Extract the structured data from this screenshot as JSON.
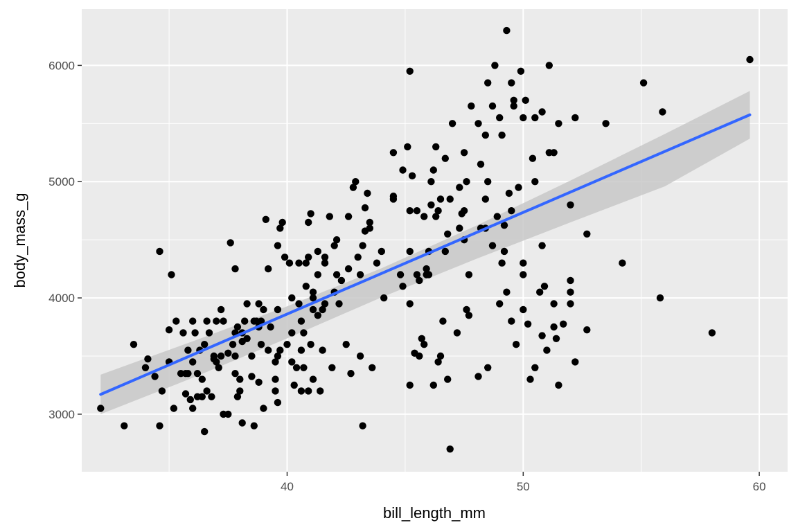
{
  "chart_data": {
    "type": "scatter",
    "xlabel": "bill_length_mm",
    "ylabel": "body_mass_g",
    "xlim": [
      31.3,
      61.2
    ],
    "ylim": [
      2505,
      6485
    ],
    "x_ticks": [
      40,
      50,
      60
    ],
    "x_minor_ticks": [
      35,
      45,
      55
    ],
    "y_ticks": [
      3000,
      4000,
      5000,
      6000
    ],
    "y_minor_ticks": [
      2500,
      3500,
      4500,
      5500
    ],
    "grid": true,
    "legend": "none",
    "colors": {
      "panel": "#ebebeb",
      "grid": "#ffffff",
      "points": "#000000",
      "smooth_line": "#3366ff",
      "ribbon": "#c8c8c8"
    },
    "smooth": {
      "method": "lm",
      "se": true,
      "line": [
        [
          32.1,
          3170
        ],
        [
          59.6,
          5575
        ]
      ],
      "ribbon_upper": [
        [
          32.1,
          3340
        ],
        [
          36,
          3627
        ],
        [
          40,
          3928
        ],
        [
          44,
          4255
        ],
        [
          48,
          4620
        ],
        [
          52,
          5010
        ],
        [
          56,
          5410
        ],
        [
          59.6,
          5780
        ]
      ],
      "ribbon_lower": [
        [
          32.1,
          3000
        ],
        [
          36,
          3313
        ],
        [
          40,
          3652
        ],
        [
          44,
          4005
        ],
        [
          48,
          4335
        ],
        [
          52,
          4650
        ],
        [
          56,
          4960
        ],
        [
          59.6,
          5370
        ]
      ]
    },
    "points": [
      [
        32.1,
        3050
      ],
      [
        33.1,
        2900
      ],
      [
        33.5,
        3600
      ],
      [
        34.0,
        3400
      ],
      [
        34.1,
        3475
      ],
      [
        34.4,
        3325
      ],
      [
        34.6,
        2900
      ],
      [
        34.6,
        4400
      ],
      [
        34.7,
        3200
      ],
      [
        35.0,
        3725
      ],
      [
        35.0,
        3450
      ],
      [
        35.1,
        4200
      ],
      [
        35.2,
        3050
      ],
      [
        35.3,
        3800
      ],
      [
        35.5,
        3350
      ],
      [
        35.6,
        3700
      ],
      [
        35.7,
        3175
      ],
      [
        35.7,
        3350
      ],
      [
        35.8,
        3550
      ],
      [
        35.9,
        3125
      ],
      [
        36.0,
        3800
      ],
      [
        36.0,
        3050
      ],
      [
        36.0,
        3450
      ],
      [
        36.1,
        3700
      ],
      [
        36.2,
        3150
      ],
      [
        36.3,
        3550
      ],
      [
        36.4,
        3300
      ],
      [
        36.5,
        2850
      ],
      [
        36.6,
        3800
      ],
      [
        36.6,
        3200
      ],
      [
        36.7,
        3700
      ],
      [
        36.8,
        3150
      ],
      [
        36.9,
        3500
      ],
      [
        37.0,
        3450
      ],
      [
        37.0,
        3800
      ],
      [
        37.1,
        3400
      ],
      [
        37.2,
        3500
      ],
      [
        37.3,
        3000
      ],
      [
        37.5,
        3000
      ],
      [
        37.6,
        4475
      ],
      [
        37.7,
        3600
      ],
      [
        37.8,
        3350
      ],
      [
        37.8,
        3500
      ],
      [
        37.8,
        4250
      ],
      [
        37.9,
        3750
      ],
      [
        38.0,
        3300
      ],
      [
        38.1,
        3700
      ],
      [
        38.1,
        2925
      ],
      [
        38.2,
        3800
      ],
      [
        38.3,
        3950
      ],
      [
        38.5,
        3325
      ],
      [
        38.6,
        3800
      ],
      [
        38.6,
        2900
      ],
      [
        38.7,
        3800
      ],
      [
        38.8,
        3950
      ],
      [
        38.8,
        3275
      ],
      [
        38.9,
        3600
      ],
      [
        39.0,
        3050
      ],
      [
        39.1,
        4675
      ],
      [
        39.2,
        4250
      ],
      [
        39.2,
        3550
      ],
      [
        39.5,
        3200
      ],
      [
        39.5,
        3300
      ],
      [
        39.6,
        3500
      ],
      [
        39.6,
        4450
      ],
      [
        39.7,
        4600
      ],
      [
        39.7,
        3550
      ],
      [
        39.8,
        4650
      ],
      [
        40.1,
        4300
      ],
      [
        40.2,
        3450
      ],
      [
        40.3,
        3250
      ],
      [
        40.5,
        3950
      ],
      [
        40.6,
        3200
      ],
      [
        40.6,
        3550
      ],
      [
        40.7,
        3400
      ],
      [
        40.8,
        4300
      ],
      [
        40.9,
        3200
      ],
      [
        40.9,
        4650
      ],
      [
        41.0,
        4725
      ],
      [
        41.1,
        4050
      ],
      [
        41.1,
        3300
      ],
      [
        41.1,
        3900
      ],
      [
        41.3,
        4400
      ],
      [
        41.4,
        3200
      ],
      [
        41.5,
        3550
      ],
      [
        41.6,
        3950
      ],
      [
        41.8,
        4700
      ],
      [
        42.0,
        4450
      ],
      [
        42.0,
        4050
      ],
      [
        42.3,
        4150
      ],
      [
        42.5,
        3600
      ],
      [
        42.7,
        3350
      ],
      [
        42.8,
        4950
      ],
      [
        43.1,
        3500
      ],
      [
        43.2,
        2900
      ],
      [
        43.2,
        4450
      ],
      [
        43.3,
        4575
      ],
      [
        43.5,
        4600
      ],
      [
        43.6,
        3400
      ],
      [
        44.1,
        4000
      ],
      [
        44.5,
        5250
      ],
      [
        44.5,
        4850
      ],
      [
        45.2,
        5950
      ],
      [
        45.2,
        3950
      ],
      [
        45.2,
        3250
      ],
      [
        45.4,
        3525
      ],
      [
        45.5,
        4750
      ],
      [
        45.6,
        3500
      ],
      [
        45.7,
        3650
      ],
      [
        45.8,
        3600
      ],
      [
        45.9,
        4200
      ],
      [
        46.1,
        4800
      ],
      [
        46.1,
        5000
      ],
      [
        46.2,
        3250
      ],
      [
        46.4,
        3450
      ],
      [
        46.5,
        3500
      ],
      [
        46.6,
        3800
      ],
      [
        46.8,
        3300
      ],
      [
        46.9,
        2700
      ],
      [
        47.0,
        5500
      ],
      [
        47.2,
        3700
      ],
      [
        47.4,
        4725
      ],
      [
        47.5,
        5250
      ],
      [
        47.6,
        3900
      ],
      [
        47.7,
        3850
      ],
      [
        48.2,
        5150
      ],
      [
        48.4,
        4600
      ],
      [
        48.5,
        5850
      ],
      [
        48.7,
        5650
      ],
      [
        48.8,
        6000
      ],
      [
        49.0,
        5550
      ],
      [
        49.2,
        4400
      ],
      [
        49.3,
        6300
      ],
      [
        49.5,
        5850
      ],
      [
        49.6,
        5650
      ],
      [
        49.9,
        5950
      ],
      [
        50.0,
        4300
      ],
      [
        50.1,
        5700
      ],
      [
        50.5,
        5550
      ],
      [
        50.8,
        4450
      ],
      [
        51.1,
        6000
      ],
      [
        51.3,
        5250
      ],
      [
        51.5,
        5500
      ],
      [
        52.0,
        4800
      ],
      [
        52.2,
        5550
      ],
      [
        52.7,
        4550
      ],
      [
        53.5,
        5500
      ],
      [
        54.2,
        4300
      ],
      [
        55.1,
        5850
      ],
      [
        55.9,
        5600
      ],
      [
        55.8,
        4000
      ],
      [
        58.0,
        3700
      ],
      [
        59.6,
        6050
      ],
      [
        48.1,
        3325
      ],
      [
        48.5,
        3400
      ],
      [
        49.0,
        3950
      ],
      [
        49.3,
        4050
      ],
      [
        49.5,
        3800
      ],
      [
        49.7,
        3600
      ],
      [
        50.0,
        3900
      ],
      [
        50.2,
        3775
      ],
      [
        50.3,
        3300
      ],
      [
        50.5,
        3400
      ],
      [
        50.7,
        4050
      ],
      [
        50.8,
        3675
      ],
      [
        51.0,
        3550
      ],
      [
        51.3,
        3750
      ],
      [
        51.4,
        3650
      ],
      [
        51.5,
        3250
      ],
      [
        51.7,
        3775
      ],
      [
        52.0,
        3950
      ],
      [
        52.2,
        3450
      ],
      [
        52.7,
        3725
      ],
      [
        50.9,
        4100
      ],
      [
        52.0,
        4150
      ],
      [
        51.3,
        3950
      ],
      [
        52.0,
        4050
      ],
      [
        49.2,
        4625
      ],
      [
        49.5,
        4750
      ],
      [
        48.7,
        4450
      ],
      [
        46.0,
        4400
      ],
      [
        45.2,
        4400
      ],
      [
        46.8,
        4550
      ],
      [
        47.3,
        4600
      ],
      [
        45.5,
        4200
      ],
      [
        45.8,
        4700
      ],
      [
        46.2,
        5100
      ],
      [
        46.5,
        4850
      ],
      [
        47.3,
        4950
      ],
      [
        48.1,
        5500
      ],
      [
        44.9,
        5100
      ],
      [
        45.1,
        5300
      ],
      [
        46.3,
        5300
      ],
      [
        46.7,
        5200
      ],
      [
        47.8,
        5650
      ],
      [
        48.4,
        5400
      ],
      [
        49.1,
        5400
      ],
      [
        49.6,
        5700
      ],
      [
        50.0,
        5550
      ],
      [
        50.4,
        5200
      ],
      [
        50.8,
        5600
      ],
      [
        48.4,
        4850
      ],
      [
        47.5,
        4750
      ],
      [
        46.4,
        4750
      ],
      [
        45.2,
        4750
      ],
      [
        44.5,
        4875
      ],
      [
        43.4,
        4900
      ],
      [
        42.6,
        4700
      ],
      [
        42.9,
        5000
      ],
      [
        43.3,
        4775
      ],
      [
        43.5,
        4650
      ],
      [
        42.1,
        4500
      ],
      [
        41.6,
        4350
      ],
      [
        40.8,
        4100
      ],
      [
        40.2,
        4000
      ],
      [
        39.6,
        3900
      ],
      [
        38.8,
        3750
      ],
      [
        38.1,
        3625
      ],
      [
        37.5,
        3525
      ],
      [
        36.9,
        3475
      ],
      [
        36.2,
        3350
      ],
      [
        39.9,
        4350
      ],
      [
        40.5,
        4300
      ],
      [
        41.1,
        4000
      ],
      [
        41.5,
        3900
      ],
      [
        42.1,
        4200
      ],
      [
        42.6,
        4250
      ],
      [
        43.0,
        4350
      ],
      [
        43.8,
        4300
      ],
      [
        44.0,
        4400
      ],
      [
        44.8,
        4200
      ],
      [
        45.6,
        4150
      ],
      [
        46.0,
        4200
      ],
      [
        40.4,
        3400
      ],
      [
        41.0,
        3600
      ],
      [
        41.9,
        3400
      ],
      [
        40.2,
        3700
      ],
      [
        39.0,
        3900
      ],
      [
        38.5,
        3500
      ],
      [
        37.8,
        3700
      ],
      [
        37.2,
        3900
      ],
      [
        36.5,
        3600
      ],
      [
        35.8,
        3350
      ],
      [
        39.6,
        3100
      ],
      [
        40.6,
        3800
      ],
      [
        38.0,
        3200
      ],
      [
        37.9,
        3150
      ],
      [
        38.9,
        3800
      ],
      [
        39.5,
        3450
      ],
      [
        40.9,
        4350
      ],
      [
        41.3,
        4200
      ],
      [
        41.6,
        4300
      ],
      [
        36.4,
        3150
      ],
      [
        37.3,
        3800
      ],
      [
        38.3,
        3650
      ],
      [
        39.3,
        3750
      ],
      [
        40.0,
        3600
      ],
      [
        40.7,
        3700
      ],
      [
        41.3,
        3850
      ],
      [
        42.2,
        3950
      ],
      [
        43.1,
        4200
      ],
      [
        44.9,
        4100
      ],
      [
        45.9,
        4250
      ],
      [
        46.7,
        4400
      ],
      [
        47.5,
        4500
      ],
      [
        48.2,
        4600
      ],
      [
        48.9,
        4700
      ],
      [
        49.8,
        4950
      ],
      [
        50.5,
        5000
      ],
      [
        46.3,
        4700
      ],
      [
        47.7,
        4200
      ],
      [
        49.1,
        4300
      ],
      [
        50.0,
        4200
      ],
      [
        45.3,
        5050
      ],
      [
        46.9,
        4850
      ],
      [
        47.6,
        5000
      ],
      [
        48.5,
        5000
      ],
      [
        49.4,
        4900
      ],
      [
        51.1,
        5250
      ]
    ]
  }
}
